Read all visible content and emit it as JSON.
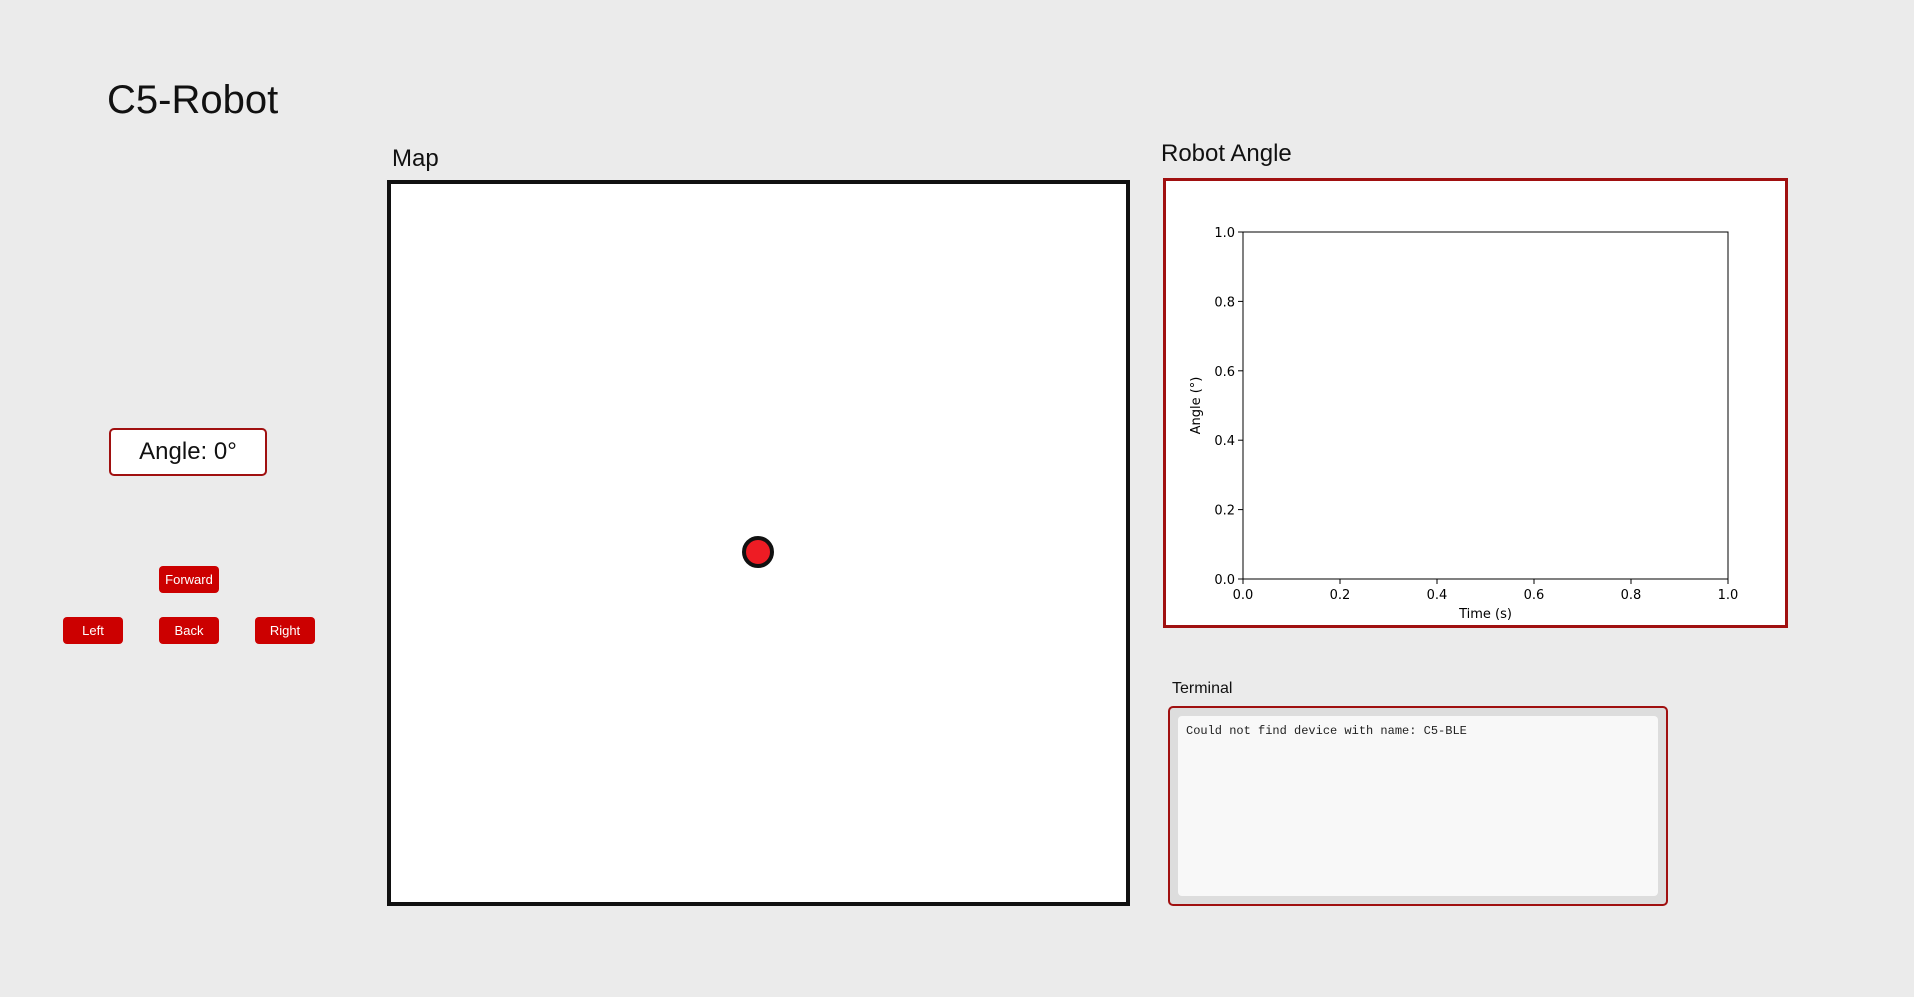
{
  "app": {
    "title": "C5-Robot"
  },
  "angle_display": {
    "text": "Angle: 0°"
  },
  "controls": {
    "forward": "Forward",
    "left": "Left",
    "back": "Back",
    "right": "Right"
  },
  "map": {
    "label": "Map"
  },
  "angle_chart": {
    "label": "Robot Angle"
  },
  "terminal": {
    "label": "Terminal",
    "output": "Could not find device with name: C5-BLE"
  },
  "colors": {
    "accent": "#cc0000",
    "border_red": "#a01010",
    "robot": "#ee1c24",
    "background": "#ebebeb"
  },
  "chart_data": {
    "type": "line",
    "title": "",
    "xlabel": "Time (s)",
    "ylabel": "Angle (°)",
    "xlim": [
      0.0,
      1.0
    ],
    "ylim": [
      0.0,
      1.0
    ],
    "xticks": [
      "0.0",
      "0.2",
      "0.4",
      "0.6",
      "0.8",
      "1.0"
    ],
    "yticks": [
      "0.0",
      "0.2",
      "0.4",
      "0.6",
      "0.8",
      "1.0"
    ],
    "grid": false,
    "series": []
  }
}
